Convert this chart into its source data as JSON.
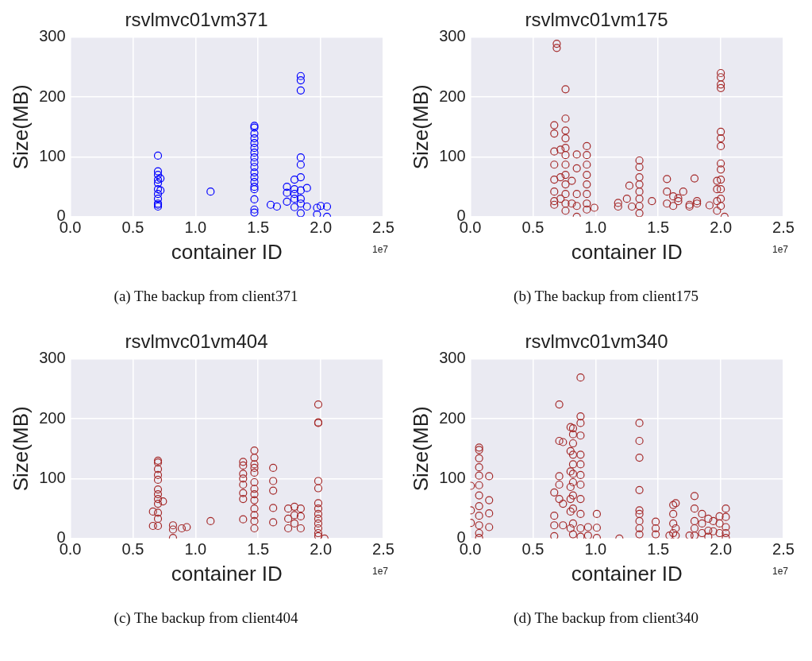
{
  "chart_data": [
    {
      "type": "scatter",
      "title": "rsvlmvc01vm371",
      "xlabel": "container ID",
      "ylabel": "Size(MB)",
      "color": "#0000ff",
      "marker": "circle",
      "grid": true,
      "xlim": [
        0,
        2.5
      ],
      "ylim": [
        0,
        300
      ],
      "xticks": [
        {
          "value": 0,
          "label": "0.0"
        },
        0.5,
        {
          "value": 1,
          "label": "1.0"
        },
        1.5,
        {
          "value": 2,
          "label": "2.0"
        },
        2.5
      ],
      "yticks": [
        0,
        100,
        200,
        300
      ],
      "annotations": [
        "1e7",
        "(a) The backup from client371"
      ],
      "x": [
        0.7,
        0.7,
        0.7,
        0.7,
        0.7,
        0.7,
        0.7,
        0.7,
        0.7,
        0.7,
        0.7,
        0.72,
        0.72,
        1.12,
        1.47,
        1.47,
        1.47,
        1.47,
        1.47,
        1.47,
        1.47,
        1.47,
        1.47,
        1.47,
        1.47,
        1.47,
        1.47,
        1.47,
        1.47,
        1.47,
        1.47,
        1.47,
        1.6,
        1.65,
        1.73,
        1.73,
        1.73,
        1.79,
        1.79,
        1.79,
        1.79,
        1.79,
        1.84,
        1.84,
        1.84,
        1.84,
        1.84,
        1.84,
        1.84,
        1.84,
        1.84,
        1.84,
        1.89,
        1.89,
        1.97,
        1.97,
        2.0,
        2.05,
        2.05
      ],
      "values": [
        102,
        76,
        70,
        62,
        56,
        46,
        38,
        30,
        22,
        17,
        20,
        64,
        44,
        42,
        152,
        149,
        139,
        131,
        123,
        115,
        107,
        99,
        91,
        83,
        74,
        66,
        58,
        50,
        46,
        29,
        12,
        7,
        20,
        17,
        50,
        40,
        25,
        62,
        46,
        38,
        30,
        16,
        235,
        228,
        211,
        99,
        87,
        66,
        44,
        30,
        22,
        6,
        48,
        17,
        15,
        4,
        18,
        17,
        0
      ]
    },
    {
      "type": "scatter",
      "title": "rsvlmvc01vm175",
      "xlabel": "container ID",
      "ylabel": "Size(MB)",
      "color": "#a52a2a",
      "marker": "circle",
      "grid": true,
      "xlim": [
        0,
        2.5
      ],
      "ylim": [
        0,
        300
      ],
      "xticks": [
        {
          "value": 0,
          "label": "0.0"
        },
        0.5,
        {
          "value": 1,
          "label": "1.0"
        },
        1.5,
        {
          "value": 2,
          "label": "2.0"
        },
        2.5
      ],
      "yticks": [
        0,
        100,
        200,
        300
      ],
      "annotations": [
        "1e7",
        "(b) The backup from client175"
      ],
      "x": [
        0.67,
        0.67,
        0.67,
        0.67,
        0.67,
        0.67,
        0.67,
        0.67,
        0.69,
        0.69,
        0.76,
        0.76,
        0.76,
        0.76,
        0.76,
        0.76,
        0.76,
        0.76,
        0.76,
        0.76,
        0.76,
        0.76,
        0.72,
        0.72,
        0.72,
        0.81,
        0.81,
        0.85,
        0.85,
        0.85,
        0.85,
        0.85,
        0.93,
        0.93,
        0.93,
        0.93,
        0.93,
        0.93,
        0.93,
        0.93,
        0.99,
        1.18,
        1.18,
        1.25,
        1.27,
        1.29,
        1.35,
        1.35,
        1.35,
        1.35,
        1.35,
        1.35,
        1.35,
        1.35,
        1.45,
        1.57,
        1.57,
        1.57,
        1.62,
        1.62,
        1.66,
        1.66,
        1.7,
        1.75,
        1.75,
        1.79,
        1.81,
        1.81,
        1.91,
        1.97,
        1.97,
        1.97,
        1.97,
        2.0,
        2.0,
        2.0,
        2.0,
        2.0,
        2.0,
        2.0,
        2.0,
        2.0,
        2.0,
        2.0,
        2.0,
        2.0,
        2.03
      ],
      "values": [
        153,
        139,
        109,
        87,
        62,
        42,
        26,
        20,
        289,
        282,
        213,
        164,
        144,
        131,
        115,
        103,
        87,
        70,
        54,
        38,
        22,
        10,
        112,
        66,
        30,
        60,
        22,
        104,
        81,
        38,
        0,
        18,
        118,
        103,
        87,
        70,
        54,
        38,
        22,
        12,
        15,
        23,
        17,
        30,
        52,
        17,
        94,
        83,
        66,
        54,
        42,
        30,
        18,
        6,
        26,
        63,
        42,
        22,
        34,
        18,
        31,
        26,
        42,
        20,
        17,
        64,
        26,
        22,
        19,
        60,
        46,
        26,
        10,
        240,
        233,
        221,
        215,
        142,
        131,
        118,
        89,
        79,
        62,
        46,
        30,
        18,
        0
      ]
    },
    {
      "type": "scatter",
      "title": "rsvlmvc01vm404",
      "xlabel": "container ID",
      "ylabel": "Size(MB)",
      "color": "#a52a2a",
      "marker": "circle",
      "grid": true,
      "xlim": [
        0,
        2.5
      ],
      "ylim": [
        0,
        300
      ],
      "xticks": [
        {
          "value": 0,
          "label": "0.0"
        },
        0.5,
        {
          "value": 1,
          "label": "1.0"
        },
        1.5,
        {
          "value": 2,
          "label": "2.0"
        },
        2.5
      ],
      "yticks": [
        0,
        100,
        200,
        300
      ],
      "annotations": [
        "1e7",
        "(c) The backup from client404"
      ],
      "x": [
        0.7,
        0.7,
        0.7,
        0.7,
        0.7,
        0.7,
        0.7,
        0.7,
        0.7,
        0.7,
        0.7,
        0.7,
        0.66,
        0.66,
        0.74,
        0.82,
        0.82,
        0.82,
        0.89,
        0.93,
        1.12,
        1.38,
        1.38,
        1.38,
        1.38,
        1.38,
        1.38,
        1.38,
        1.38,
        1.47,
        1.47,
        1.47,
        1.47,
        1.47,
        1.47,
        1.47,
        1.47,
        1.47,
        1.47,
        1.47,
        1.47,
        1.47,
        1.62,
        1.62,
        1.62,
        1.62,
        1.62,
        1.74,
        1.74,
        1.74,
        1.79,
        1.79,
        1.79,
        1.84,
        1.84,
        1.84,
        1.98,
        1.98,
        1.98,
        1.98,
        1.98,
        1.98,
        1.98,
        1.98,
        1.98,
        1.98,
        1.98,
        1.98,
        1.98,
        2.03
      ],
      "values": [
        130,
        127,
        116,
        106,
        98,
        82,
        74,
        66,
        58,
        43,
        33,
        21,
        45,
        21,
        62,
        22,
        15,
        1,
        17,
        19,
        29,
        128,
        122,
        108,
        100,
        90,
        76,
        66,
        32,
        147,
        135,
        124,
        118,
        110,
        94,
        83,
        74,
        64,
        50,
        39,
        29,
        17,
        118,
        96,
        80,
        51,
        27,
        50,
        33,
        17,
        53,
        39,
        25,
        50,
        37,
        17,
        224,
        194,
        193,
        96,
        84,
        59,
        50,
        41,
        33,
        25,
        17,
        9,
        4,
        0
      ]
    },
    {
      "type": "scatter",
      "title": "rsvlmvc01vm340",
      "xlabel": "container ID",
      "ylabel": "Size(MB)",
      "color": "#a52a2a",
      "marker": "circle",
      "grid": true,
      "xlim": [
        0,
        2.5
      ],
      "ylim": [
        0,
        300
      ],
      "xticks": [
        {
          "value": 0,
          "label": "0.0"
        },
        0.5,
        {
          "value": 1,
          "label": "1.0"
        },
        1.5,
        {
          "value": 2,
          "label": "2.0"
        },
        2.5
      ],
      "yticks": [
        0,
        100,
        200,
        300
      ],
      "annotations": [
        "1e7",
        "(d) The backup from client340"
      ],
      "x": [
        0.004,
        0.004,
        0.004,
        0.07,
        0.07,
        0.07,
        0.07,
        0.07,
        0.07,
        0.07,
        0.07,
        0.07,
        0.07,
        0.07,
        0.07,
        0.15,
        0.15,
        0.15,
        0.15,
        0.67,
        0.67,
        0.67,
        0.67,
        0.71,
        0.71,
        0.71,
        0.71,
        0.71,
        0.74,
        0.74,
        0.74,
        0.8,
        0.8,
        0.8,
        0.8,
        0.8,
        0.8,
        0.8,
        0.82,
        0.82,
        0.82,
        0.82,
        0.82,
        0.82,
        0.82,
        0.82,
        0.82,
        0.82,
        0.82,
        0.88,
        0.88,
        0.88,
        0.88,
        0.88,
        0.88,
        0.88,
        0.88,
        0.88,
        0.88,
        0.88,
        0.88,
        0.94,
        0.94,
        1.01,
        1.01,
        1.01,
        1.19,
        1.35,
        1.35,
        1.35,
        1.35,
        1.35,
        1.35,
        1.35,
        1.35,
        1.35,
        1.48,
        1.48,
        1.48,
        1.59,
        1.62,
        1.62,
        1.62,
        1.62,
        1.64,
        1.64,
        1.64,
        1.75,
        1.79,
        1.79,
        1.79,
        1.79,
        1.79,
        1.85,
        1.85,
        1.85,
        1.9,
        1.9,
        1.9,
        1.94,
        1.94,
        1.99,
        1.99,
        1.99,
        2.04,
        2.04,
        2.04,
        2.04,
        2.04
      ],
      "values": [
        88,
        47,
        26,
        152,
        148,
        134,
        119,
        105,
        89,
        72,
        54,
        38,
        22,
        9,
        1,
        104,
        64,
        42,
        19,
        77,
        38,
        22,
        4,
        224,
        163,
        104,
        90,
        66,
        161,
        58,
        22,
        186,
        146,
        112,
        86,
        66,
        45,
        17,
        184,
        174,
        159,
        140,
        124,
        108,
        94,
        72,
        50,
        25,
        7,
        269,
        204,
        193,
        172,
        140,
        124,
        106,
        90,
        66,
        41,
        17,
        3,
        19,
        5,
        41,
        18,
        1,
        0,
        193,
        163,
        135,
        81,
        47,
        41,
        29,
        17,
        7,
        28,
        17,
        7,
        5,
        56,
        41,
        25,
        9,
        59,
        17,
        5,
        5,
        71,
        50,
        29,
        17,
        5,
        41,
        25,
        9,
        33,
        13,
        3,
        29,
        12,
        37,
        25,
        9,
        50,
        36,
        19,
        9,
        1
      ]
    }
  ]
}
